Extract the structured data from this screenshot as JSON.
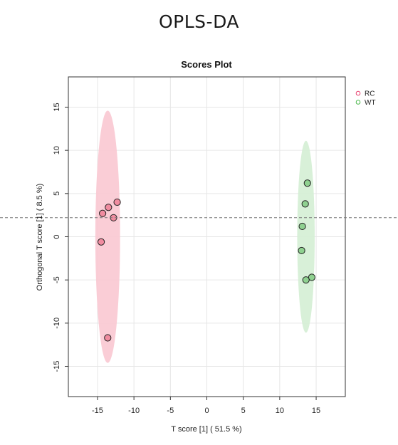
{
  "page": {
    "title": "OPLS-DA"
  },
  "chart_data": {
    "type": "scatter",
    "title": "Scores Plot",
    "xlabel": "T score [1] ( 51.5 %)",
    "ylabel": "Orthogonal T score [1] ( 8.5 %)",
    "xlim": [
      -19,
      19
    ],
    "ylim": [
      -18.5,
      18.5
    ],
    "x_ticks": [
      -15,
      -10,
      -5,
      0,
      5,
      10,
      15
    ],
    "y_ticks": [
      -15,
      -10,
      -5,
      0,
      5,
      10,
      15
    ],
    "grid": true,
    "legend_position": "top-right",
    "reference_line_y": 2.2,
    "series": [
      {
        "name": "RC",
        "color": "#e8426f",
        "fill": "#f08ca0",
        "ellipse_fill": "#f9c8d2",
        "points": [
          {
            "x": -12.3,
            "y": 4.0
          },
          {
            "x": -13.5,
            "y": 3.4
          },
          {
            "x": -14.3,
            "y": 2.7
          },
          {
            "x": -12.8,
            "y": 2.2
          },
          {
            "x": -14.5,
            "y": -0.6
          },
          {
            "x": -13.6,
            "y": -11.7
          }
        ],
        "ellipse": {
          "cx": -13.6,
          "cy": 0.0,
          "rx": 1.7,
          "ry": 14.6
        }
      },
      {
        "name": "WT",
        "color": "#4cb84c",
        "fill": "#8fd190",
        "ellipse_fill": "#d4eed4",
        "points": [
          {
            "x": 13.8,
            "y": 6.2
          },
          {
            "x": 13.5,
            "y": 3.8
          },
          {
            "x": 13.1,
            "y": 1.2
          },
          {
            "x": 13.0,
            "y": -1.6
          },
          {
            "x": 14.4,
            "y": -4.7
          },
          {
            "x": 13.6,
            "y": -5.0
          }
        ],
        "ellipse": {
          "cx": 13.6,
          "cy": 0.0,
          "rx": 1.2,
          "ry": 11.1
        }
      }
    ]
  }
}
